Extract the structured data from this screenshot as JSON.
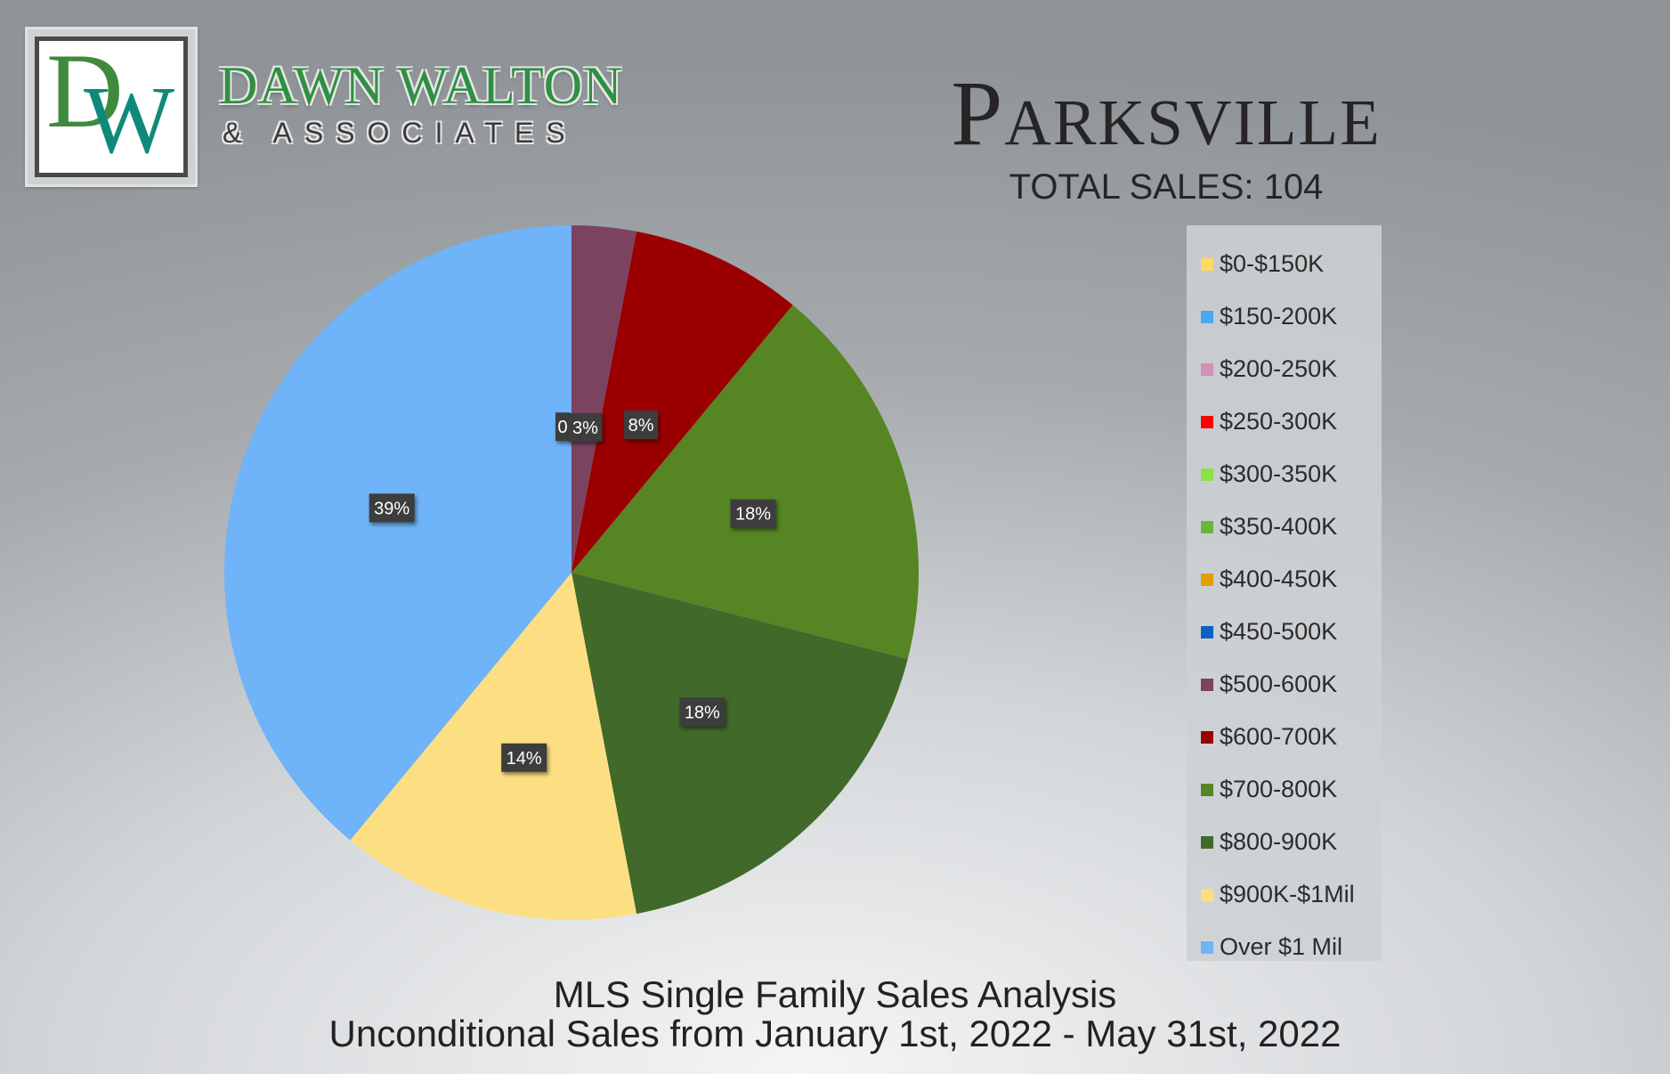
{
  "brand": {
    "name": "DAWN WALTON",
    "subtitle": "& ASSOCIATES",
    "logo_letters": "DW"
  },
  "header": {
    "city": "Parksville",
    "total_sales": "TOTAL SALES: 104"
  },
  "footer": {
    "line1": "MLS Single Family Sales Analysis",
    "line2": "Unconditional Sales from January 1st, 2022 - May 31st, 2022"
  },
  "chart_data": {
    "type": "pie",
    "title": "",
    "legend_position": "right",
    "categories": [
      "$0-$150K",
      "$150-200K",
      "$200-250K",
      "$250-300K",
      "$300-350K",
      "$350-400K",
      "$400-450K",
      "$450-500K",
      "$500-600K",
      "$600-700K",
      "$700-800K",
      "$800-900K",
      "$900K-$1Mil",
      "Over $1 Mil"
    ],
    "values": [
      0,
      0,
      0,
      0,
      0,
      0,
      0,
      0,
      3,
      8,
      18,
      18,
      14,
      39
    ],
    "data_labels": [
      "",
      "",
      "",
      "",
      "",
      "",
      "",
      "0",
      "3%",
      "8%",
      "18%",
      "18%",
      "14%",
      "39%"
    ],
    "colors": [
      "#ffd966",
      "#4aa7f0",
      "#d58fb4",
      "#ff0000",
      "#8ee04a",
      "#6db33f",
      "#e0a000",
      "#0a63c2",
      "#7c4360",
      "#9a0000",
      "#568523",
      "#41692a",
      "#fddf83",
      "#6fb3f8"
    ],
    "legend_colors": [
      "#ffd966",
      "#4aa7f0",
      "#d58fb4",
      "#ff0000",
      "#8ee04a",
      "#6db33f",
      "#e0a000",
      "#0a63c2",
      "#7c4360",
      "#9a0000",
      "#568523",
      "#41692a",
      "#fddf83",
      "#6fb3f8"
    ]
  }
}
